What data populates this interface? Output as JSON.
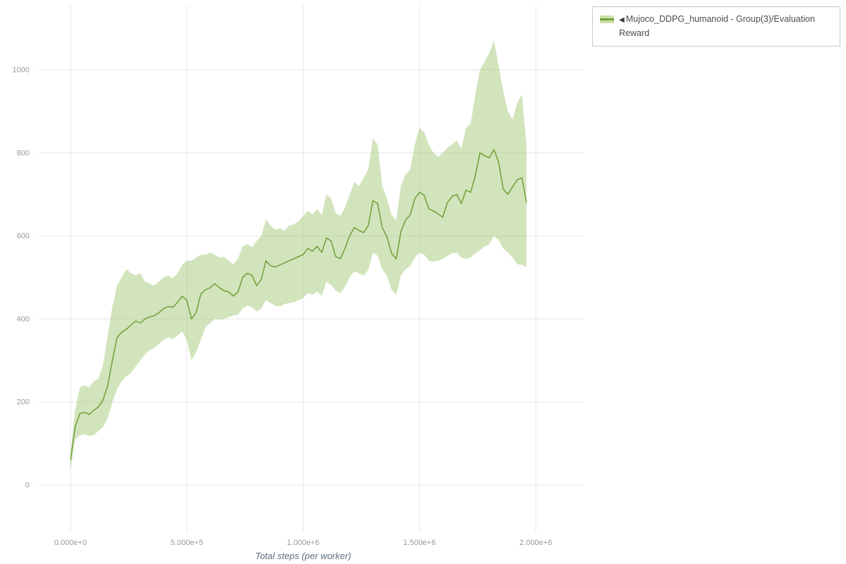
{
  "page": {
    "background": "#ffffff"
  },
  "legend": {
    "marker": "◀",
    "label": "Mujoco_DDPG_humanoid - Group(3)/Evaluation Reward"
  },
  "chart_data": {
    "type": "line",
    "title": "",
    "xlabel": "Total steps (per worker)",
    "ylabel": "",
    "xlim": [
      0,
      2000000
    ],
    "ylim": [
      0,
      1000
    ],
    "grid": true,
    "legend_position": "top-right",
    "xticks": [
      {
        "v": 0,
        "label": "0.000e+0"
      },
      {
        "v": 500000,
        "label": "5.000e+5"
      },
      {
        "v": 1000000,
        "label": "1.000e+6"
      },
      {
        "v": 1500000,
        "label": "1.500e+6"
      },
      {
        "v": 2000000,
        "label": "2.000e+6"
      }
    ],
    "yticks": [
      {
        "v": 0,
        "label": "0"
      },
      {
        "v": 200,
        "label": "200"
      },
      {
        "v": 400,
        "label": "400"
      },
      {
        "v": 600,
        "label": "600"
      },
      {
        "v": 800,
        "label": "800"
      },
      {
        "v": 1000,
        "label": "1000"
      }
    ],
    "colors": {
      "line": "#73a33e",
      "band": "#a5c979",
      "band_opacity": 0.5,
      "swatch_fill": "#cbe0a8",
      "grid": "#e6e6e6",
      "tick_text": "#9a9a9a",
      "xlabel_text": "#5b7083"
    },
    "x": [
      0,
      20000,
      40000,
      60000,
      80000,
      100000,
      120000,
      140000,
      160000,
      180000,
      200000,
      220000,
      240000,
      260000,
      280000,
      300000,
      320000,
      340000,
      360000,
      380000,
      400000,
      420000,
      440000,
      460000,
      480000,
      500000,
      520000,
      540000,
      560000,
      580000,
      600000,
      620000,
      640000,
      660000,
      680000,
      700000,
      720000,
      740000,
      760000,
      780000,
      800000,
      820000,
      840000,
      860000,
      880000,
      900000,
      920000,
      940000,
      960000,
      980000,
      1000000,
      1020000,
      1040000,
      1060000,
      1080000,
      1100000,
      1120000,
      1140000,
      1160000,
      1180000,
      1200000,
      1220000,
      1240000,
      1260000,
      1280000,
      1300000,
      1320000,
      1340000,
      1360000,
      1380000,
      1400000,
      1420000,
      1440000,
      1460000,
      1480000,
      1500000,
      1520000,
      1540000,
      1560000,
      1580000,
      1600000,
      1620000,
      1640000,
      1660000,
      1680000,
      1700000,
      1720000,
      1740000,
      1760000,
      1780000,
      1800000,
      1820000,
      1840000,
      1860000,
      1880000,
      1900000,
      1920000,
      1940000,
      1960000
    ],
    "series": [
      {
        "name": "Mujoco_DDPG_humanoid - Group(3)/Evaluation Reward (mean)",
        "values": [
          60,
          140,
          172,
          175,
          170,
          180,
          188,
          205,
          240,
          300,
          355,
          368,
          375,
          385,
          395,
          390,
          400,
          405,
          408,
          415,
          425,
          430,
          428,
          440,
          455,
          445,
          400,
          415,
          460,
          470,
          475,
          485,
          475,
          468,
          465,
          455,
          465,
          500,
          510,
          505,
          480,
          495,
          540,
          528,
          525,
          530,
          535,
          540,
          545,
          550,
          555,
          570,
          563,
          575,
          560,
          595,
          588,
          550,
          545,
          570,
          600,
          620,
          613,
          608,
          625,
          685,
          678,
          620,
          598,
          558,
          545,
          610,
          638,
          650,
          690,
          705,
          698,
          665,
          660,
          653,
          645,
          680,
          695,
          700,
          678,
          710,
          705,
          745,
          800,
          793,
          788,
          808,
          778,
          713,
          700,
          718,
          735,
          740,
          680
        ]
      }
    ],
    "band": {
      "lower": [
        35,
        110,
        120,
        122,
        118,
        120,
        130,
        140,
        160,
        200,
        230,
        250,
        262,
        270,
        285,
        300,
        315,
        325,
        330,
        340,
        350,
        355,
        352,
        360,
        370,
        350,
        300,
        320,
        350,
        380,
        390,
        400,
        398,
        400,
        405,
        408,
        410,
        425,
        432,
        428,
        418,
        425,
        445,
        438,
        432,
        430,
        436,
        438,
        440,
        445,
        450,
        462,
        458,
        466,
        455,
        490,
        482,
        468,
        462,
        478,
        500,
        515,
        510,
        505,
        518,
        560,
        552,
        520,
        505,
        470,
        458,
        505,
        520,
        528,
        548,
        560,
        555,
        540,
        538,
        540,
        545,
        552,
        558,
        560,
        548,
        545,
        548,
        558,
        565,
        575,
        580,
        600,
        590,
        570,
        560,
        548,
        532,
        530,
        525
      ],
      "upper": [
        75,
        180,
        235,
        240,
        235,
        250,
        255,
        290,
        360,
        430,
        480,
        500,
        520,
        510,
        505,
        510,
        490,
        485,
        480,
        490,
        500,
        505,
        498,
        510,
        530,
        540,
        540,
        548,
        555,
        555,
        560,
        555,
        548,
        550,
        540,
        532,
        545,
        575,
        580,
        572,
        588,
        600,
        640,
        625,
        615,
        618,
        612,
        625,
        628,
        635,
        648,
        660,
        652,
        665,
        650,
        700,
        690,
        655,
        648,
        668,
        700,
        730,
        720,
        740,
        760,
        835,
        820,
        720,
        690,
        650,
        638,
        720,
        748,
        760,
        820,
        860,
        850,
        820,
        800,
        790,
        800,
        812,
        820,
        830,
        810,
        860,
        870,
        940,
        1000,
        1020,
        1040,
        1070,
        1010,
        950,
        900,
        880,
        920,
        940,
        820
      ]
    }
  }
}
